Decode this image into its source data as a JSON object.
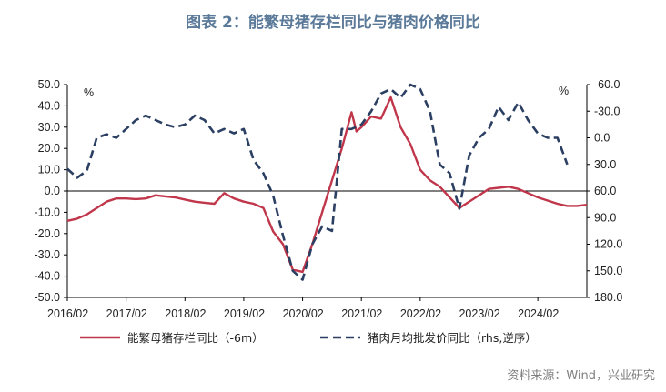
{
  "title": "图表 2：能繁母猪存栏同比与猪肉价格同比",
  "source": "资料来源：Wind，兴业研究",
  "chart_data": {
    "type": "line",
    "y_left": {
      "unit": "%",
      "ticks": [
        50,
        40,
        30,
        20,
        10,
        0,
        -10,
        -20,
        -30,
        -40,
        -50
      ],
      "labels": [
        "50.0",
        "40.0",
        "30.0",
        "20.0",
        "10.0",
        "0.0",
        "-10.0",
        "-20.0",
        "-30.0",
        "-40.0",
        "-50.0"
      ],
      "range": [
        -50,
        50
      ]
    },
    "y_right": {
      "unit": "%",
      "inverted": true,
      "ticks": [
        -60,
        -30,
        0,
        30,
        60,
        90,
        120,
        150,
        180
      ],
      "labels": [
        "-60.0",
        "-30.0",
        "0.0",
        "30.0",
        "60.0",
        "90.0",
        "120.0",
        "150.0",
        "180.0"
      ],
      "range": [
        -60,
        180
      ]
    },
    "x_labels": [
      "2016/02",
      "2017/02",
      "2018/02",
      "2019/02",
      "2020/02",
      "2021/02",
      "2022/02",
      "2023/02",
      "2024/02"
    ],
    "x_range": [
      "2016-02",
      "2024-12"
    ],
    "grid": false,
    "series": [
      {
        "name": "能繁母猪存栏同比（-6m）",
        "axis": "left",
        "color": "#c0364a",
        "style": "solid",
        "x": [
          "2016-02",
          "2016-04",
          "2016-06",
          "2016-08",
          "2016-10",
          "2016-12",
          "2017-02",
          "2017-04",
          "2017-06",
          "2017-08",
          "2017-10",
          "2017-12",
          "2018-02",
          "2018-04",
          "2018-06",
          "2018-08",
          "2018-10",
          "2018-12",
          "2019-02",
          "2019-04",
          "2019-06",
          "2019-08",
          "2019-10",
          "2019-12",
          "2020-02",
          "2020-04",
          "2020-06",
          "2020-08",
          "2020-10",
          "2020-12",
          "2021-01",
          "2021-02",
          "2021-04",
          "2021-06",
          "2021-08",
          "2021-10",
          "2021-12",
          "2022-02",
          "2022-04",
          "2022-06",
          "2022-08",
          "2022-10",
          "2022-12",
          "2023-02",
          "2023-04",
          "2023-06",
          "2023-08",
          "2023-10",
          "2023-12",
          "2024-02",
          "2024-04",
          "2024-06",
          "2024-08",
          "2024-10",
          "2024-12"
        ],
        "y": [
          -14,
          -13,
          -11,
          -8,
          -5,
          -3.5,
          -3.5,
          -3.8,
          -3.5,
          -2,
          -2.5,
          -3,
          -4,
          -5,
          -5.5,
          -6,
          -1,
          -3.5,
          -5,
          -6,
          -8,
          -19,
          -25,
          -37,
          -38,
          -25,
          -10,
          5,
          20,
          37,
          28,
          30,
          35,
          34,
          44,
          30,
          22,
          10,
          5,
          2,
          -3,
          -8,
          -5,
          -2,
          1,
          1.5,
          2,
          1,
          -1,
          -3,
          -4.5,
          -6,
          -7,
          -7,
          -6.5
        ]
      },
      {
        "name": "猪肉月均批发价同比（rhs,逆序）",
        "axis": "right",
        "color": "#2b3f62",
        "style": "dashed",
        "x": [
          "2016-02",
          "2016-04",
          "2016-06",
          "2016-08",
          "2016-10",
          "2016-12",
          "2017-02",
          "2017-04",
          "2017-06",
          "2017-08",
          "2017-10",
          "2017-12",
          "2018-02",
          "2018-04",
          "2018-06",
          "2018-08",
          "2018-10",
          "2018-12",
          "2019-02",
          "2019-04",
          "2019-06",
          "2019-08",
          "2019-10",
          "2019-12",
          "2020-02",
          "2020-04",
          "2020-06",
          "2020-08",
          "2020-10",
          "2020-12",
          "2021-02",
          "2021-04",
          "2021-06",
          "2021-08",
          "2021-10",
          "2021-12",
          "2022-02",
          "2022-04",
          "2022-06",
          "2022-08",
          "2022-10",
          "2022-12",
          "2023-02",
          "2023-04",
          "2023-06",
          "2023-08",
          "2023-10",
          "2023-12",
          "2024-02",
          "2024-04",
          "2024-06",
          "2024-08"
        ],
        "y": [
          35,
          45,
          37,
          0,
          -4,
          0,
          -10,
          -20,
          -25,
          -20,
          -15,
          -12,
          -15,
          -25,
          -20,
          -5,
          -10,
          -5,
          -10,
          25,
          40,
          65,
          110,
          150,
          160,
          120,
          100,
          105,
          -10,
          -10,
          -15,
          -30,
          -50,
          -55,
          -45,
          -60,
          -55,
          -30,
          30,
          40,
          80,
          20,
          0,
          -10,
          -35,
          -20,
          -40,
          -20,
          -5,
          0,
          0,
          30
        ]
      }
    ],
    "legend_position": "bottom"
  }
}
